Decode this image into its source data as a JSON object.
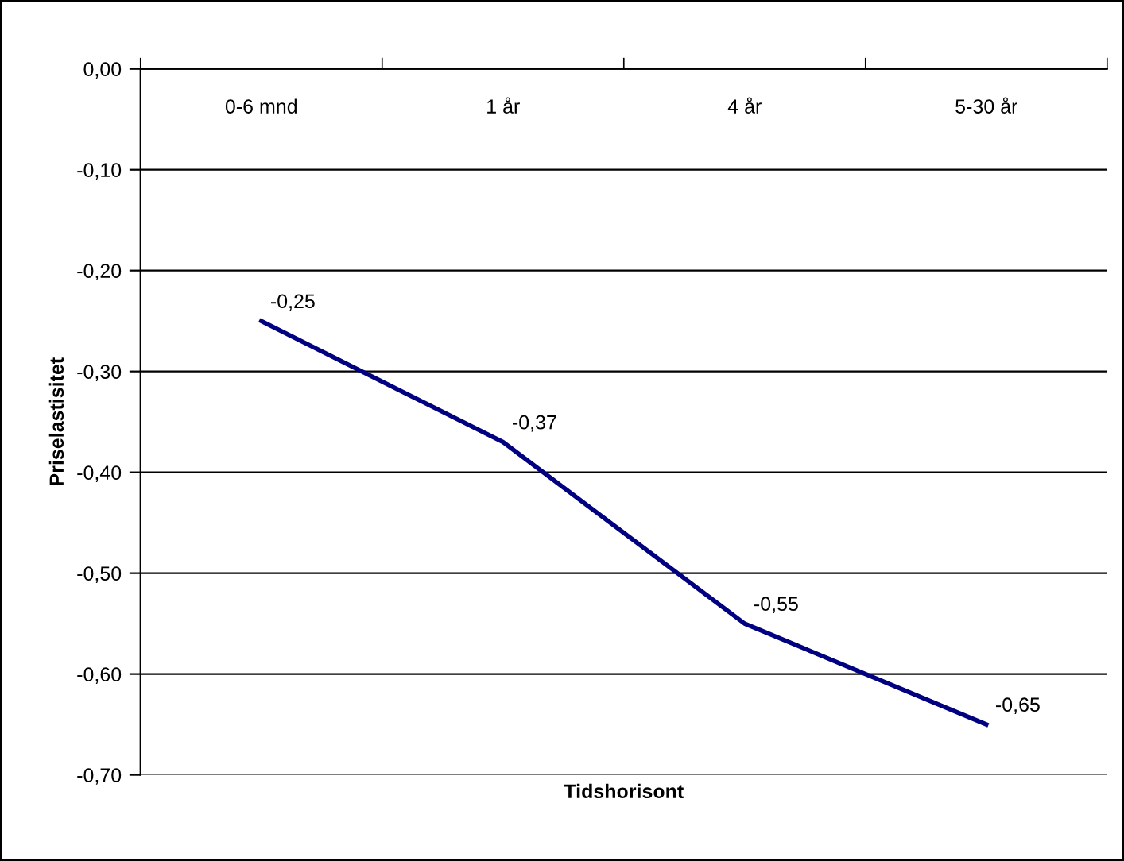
{
  "chart_data": {
    "type": "line",
    "xlabel": "Tidshorisont",
    "ylabel": "Priselastisitet",
    "categories": [
      "0-6 mnd",
      "1 år",
      "4 år",
      "5-30 år"
    ],
    "series": [
      {
        "color": "#000080",
        "values": [
          -0.25,
          -0.37,
          -0.55,
          -0.65
        ],
        "value_labels": [
          "-0,25",
          "-0,37",
          "-0,55",
          "-0,65"
        ]
      }
    ],
    "ylim": [
      -0.7,
      0
    ],
    "yticks": [
      {
        "value": 0,
        "label": "0,00"
      },
      {
        "value": -0.1,
        "label": "-0,10"
      },
      {
        "value": -0.2,
        "label": "-0,20"
      },
      {
        "value": -0.3,
        "label": "-0,30"
      },
      {
        "value": -0.4,
        "label": "-0,40"
      },
      {
        "value": -0.5,
        "label": "-0,50"
      },
      {
        "value": -0.6,
        "label": "-0,60"
      },
      {
        "value": -0.7,
        "label": "-0,70"
      }
    ],
    "grid": "y",
    "marker": "none",
    "line_style": "solid",
    "legend": false
  }
}
